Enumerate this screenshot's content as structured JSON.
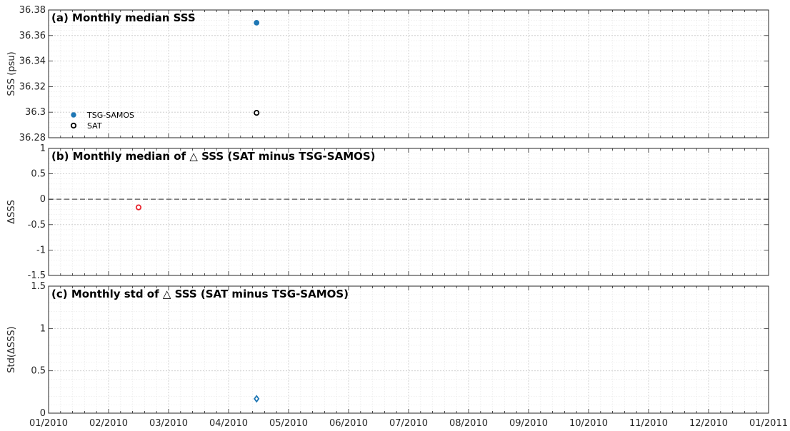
{
  "x_tick_labels": [
    "01/2010",
    "02/2010",
    "03/2010",
    "04/2010",
    "05/2010",
    "06/2010",
    "07/2010",
    "08/2010",
    "09/2010",
    "10/2010",
    "11/2010",
    "12/2010",
    "01/2011"
  ],
  "chart_data": [
    {
      "type": "scatter",
      "title": "(a) Monthly median SSS",
      "ylabel": "SSS (psu)",
      "xlim": [
        "2010-01",
        "2011-01"
      ],
      "ylim": [
        36.28,
        36.38
      ],
      "yticks": [
        "36.28",
        "36.3",
        "36.32",
        "36.34",
        "36.36",
        "36.38"
      ],
      "yticks_values": [
        36.28,
        36.3,
        36.32,
        36.34,
        36.36,
        36.38
      ],
      "grid": true,
      "legend_position": "bottom-left",
      "series": [
        {
          "name": "TSG-SAMOS",
          "marker": "filled-circle",
          "color": "#1f77b4",
          "points": [
            {
              "x": "2010-04-15",
              "y": 36.37
            }
          ]
        },
        {
          "name": "SAT",
          "marker": "open-circle",
          "color": "#000000",
          "points": [
            {
              "x": "2010-04-15",
              "y": 36.2995
            }
          ]
        }
      ]
    },
    {
      "type": "scatter",
      "title": "(b) Monthly median of △ SSS (SAT minus TSG-SAMOS)",
      "ylabel": "ΔSSS",
      "xlim": [
        "2010-01",
        "2011-01"
      ],
      "ylim": [
        -1.5,
        1
      ],
      "yticks": [
        "-1.5",
        "-1",
        "-0.5",
        "0",
        "0.5",
        "1"
      ],
      "yticks_values": [
        -1.5,
        -1,
        -0.5,
        0,
        0.5,
        1
      ],
      "grid": true,
      "reference_line": {
        "y": 0,
        "style": "dashed",
        "color": "#666666"
      },
      "series": [
        {
          "marker": "open-circle",
          "color": "#e8212b",
          "points": [
            {
              "x": "2010-02-15",
              "y": -0.16
            }
          ]
        }
      ]
    },
    {
      "type": "scatter",
      "title": "(c) Monthly std of △ SSS (SAT minus TSG-SAMOS)",
      "ylabel": "Std(ΔSSS)",
      "xlim": [
        "2010-01",
        "2011-01"
      ],
      "ylim": [
        0,
        1.5
      ],
      "yticks": [
        "0",
        "0.5",
        "1",
        "1.5"
      ],
      "yticks_values": [
        0,
        0.5,
        1,
        1.5
      ],
      "grid": true,
      "series": [
        {
          "marker": "open-diamond",
          "color": "#1f77b4",
          "points": [
            {
              "x": "2010-04-15",
              "y": 0.17
            }
          ]
        }
      ]
    }
  ]
}
